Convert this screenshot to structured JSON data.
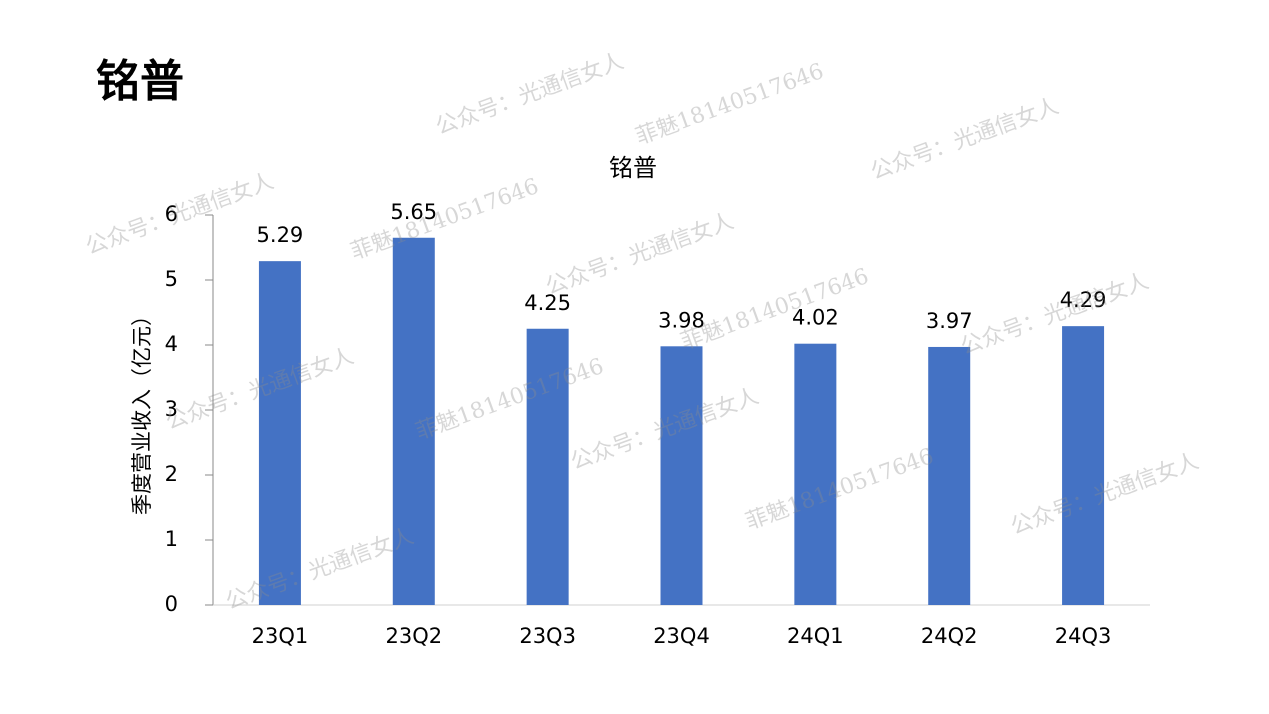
{
  "header": {
    "title": "铭普"
  },
  "watermarks": [
    "公众号：光通信女人",
    "菲魅18140517646",
    "公众号：光通信女人",
    "公众号：光通信女人",
    "菲魅18140517646",
    "公众号：光通信女人",
    "菲魅18140517646",
    "公众号：光通信女人",
    "公众号：光通信女人",
    "菲魅18140517646",
    "公众号：光通信女人",
    "菲魅18140517646",
    "公众号：光通信女人",
    "公众号：光通信女人"
  ],
  "chart_data": {
    "type": "bar",
    "title": "铭普",
    "y_label": "季度营业收入（亿元）",
    "categories": [
      "23Q1",
      "23Q2",
      "23Q3",
      "23Q4",
      "24Q1",
      "24Q2",
      "24Q3"
    ],
    "values": [
      5.29,
      5.65,
      4.25,
      3.98,
      4.02,
      3.97,
      4.29
    ],
    "color": "#4472c4",
    "ylim": [
      0,
      6
    ],
    "yticks": [
      0,
      1,
      2,
      3,
      4,
      5,
      6
    ],
    "grid": false
  }
}
